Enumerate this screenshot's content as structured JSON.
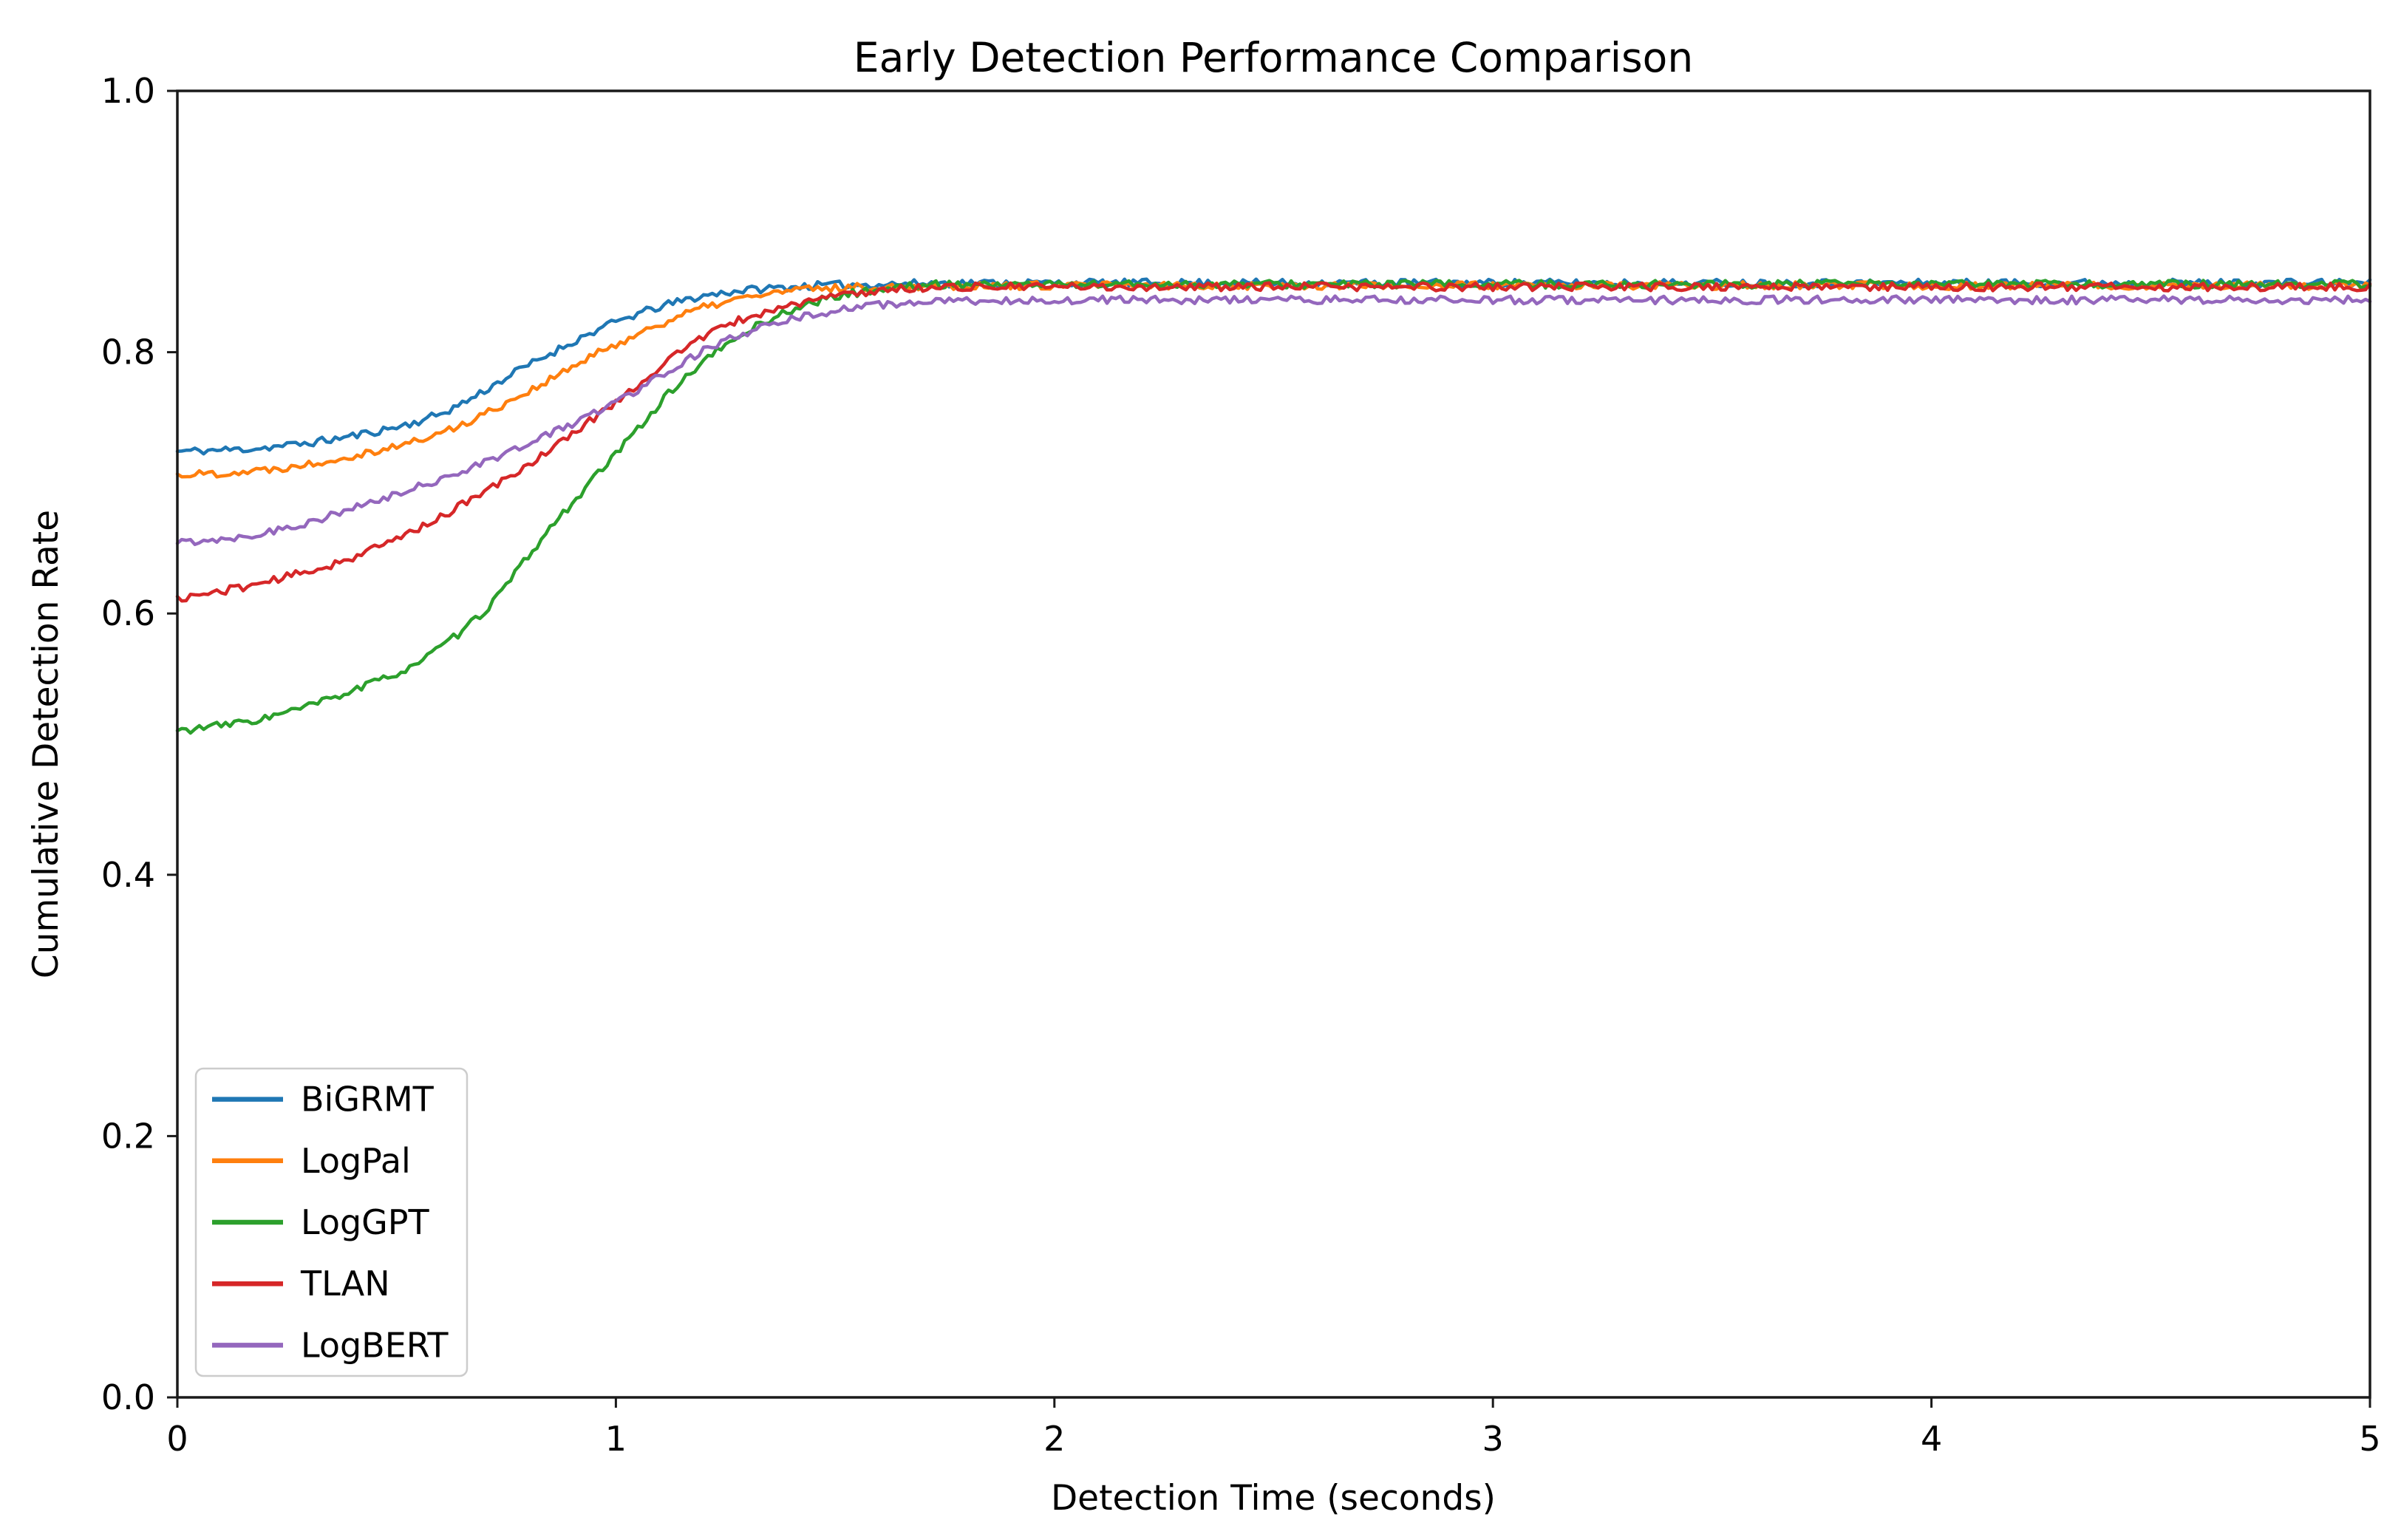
{
  "chart_data": {
    "type": "line",
    "title": "Early Detection Performance Comparison",
    "xlabel": "Detection Time (seconds)",
    "ylabel": "Cumulative Detection Rate",
    "xlim": [
      0,
      5
    ],
    "ylim": [
      0.0,
      1.0
    ],
    "xticks": [
      0,
      1,
      2,
      3,
      4,
      5
    ],
    "xtick_labels": [
      "0",
      "1",
      "2",
      "3",
      "4",
      "5"
    ],
    "yticks": [
      0.0,
      0.2,
      0.4,
      0.6,
      0.8,
      1.0
    ],
    "ytick_labels": [
      "0.0",
      "0.2",
      "0.4",
      "0.6",
      "0.8",
      "1.0"
    ],
    "grid": false,
    "legend_position": "lower left",
    "noise_amplitude": 0.003,
    "points_per_series": 501,
    "series": [
      {
        "name": "BiGRMT",
        "color": "#1f77b4",
        "seed": 11,
        "start_value": 0.724,
        "plateau_value": 0.853,
        "anchors": [
          [
            0,
            0.724
          ],
          [
            0.2,
            0.727
          ],
          [
            0.4,
            0.736
          ],
          [
            0.6,
            0.753
          ],
          [
            0.8,
            0.79
          ],
          [
            1.0,
            0.823
          ],
          [
            1.2,
            0.843
          ],
          [
            1.4,
            0.85
          ],
          [
            1.6,
            0.852
          ],
          [
            1.8,
            0.853
          ],
          [
            2.0,
            0.853
          ],
          [
            2.5,
            0.853
          ],
          [
            3.0,
            0.853
          ],
          [
            3.5,
            0.853
          ],
          [
            4.0,
            0.853
          ],
          [
            4.5,
            0.853
          ],
          [
            5.0,
            0.853
          ]
        ]
      },
      {
        "name": "LogPal",
        "color": "#ff7f0e",
        "seed": 22,
        "start_value": 0.706,
        "plateau_value": 0.851,
        "anchors": [
          [
            0,
            0.706
          ],
          [
            0.2,
            0.71
          ],
          [
            0.4,
            0.721
          ],
          [
            0.6,
            0.738
          ],
          [
            0.8,
            0.77
          ],
          [
            1.0,
            0.806
          ],
          [
            1.2,
            0.834
          ],
          [
            1.4,
            0.847
          ],
          [
            1.6,
            0.85
          ],
          [
            1.8,
            0.851
          ],
          [
            2.0,
            0.851
          ],
          [
            2.5,
            0.851
          ],
          [
            3.0,
            0.851
          ],
          [
            3.5,
            0.851
          ],
          [
            4.0,
            0.851
          ],
          [
            4.5,
            0.851
          ],
          [
            5.0,
            0.851
          ]
        ]
      },
      {
        "name": "LogGPT",
        "color": "#2ca02c",
        "seed": 33,
        "start_value": 0.51,
        "plateau_value": 0.852,
        "anchors": [
          [
            0,
            0.51
          ],
          [
            0.2,
            0.52
          ],
          [
            0.4,
            0.541
          ],
          [
            0.55,
            0.563
          ],
          [
            0.7,
            0.602
          ],
          [
            0.85,
            0.665
          ],
          [
            1.0,
            0.722
          ],
          [
            1.15,
            0.778
          ],
          [
            1.3,
            0.816
          ],
          [
            1.45,
            0.838
          ],
          [
            1.6,
            0.848
          ],
          [
            1.8,
            0.852
          ],
          [
            2.0,
            0.852
          ],
          [
            2.5,
            0.852
          ],
          [
            3.0,
            0.852
          ],
          [
            3.5,
            0.852
          ],
          [
            4.0,
            0.852
          ],
          [
            4.5,
            0.852
          ],
          [
            5.0,
            0.852
          ]
        ]
      },
      {
        "name": "TLAN",
        "color": "#d62728",
        "seed": 44,
        "start_value": 0.611,
        "plateau_value": 0.85,
        "anchors": [
          [
            0,
            0.611
          ],
          [
            0.2,
            0.624
          ],
          [
            0.4,
            0.643
          ],
          [
            0.6,
            0.674
          ],
          [
            0.8,
            0.714
          ],
          [
            1.0,
            0.762
          ],
          [
            1.2,
            0.812
          ],
          [
            1.4,
            0.836
          ],
          [
            1.6,
            0.847
          ],
          [
            1.8,
            0.85
          ],
          [
            2.0,
            0.85
          ],
          [
            2.5,
            0.85
          ],
          [
            3.0,
            0.85
          ],
          [
            3.5,
            0.85
          ],
          [
            4.0,
            0.85
          ],
          [
            4.5,
            0.85
          ],
          [
            5.0,
            0.85
          ]
        ]
      },
      {
        "name": "LogBERT",
        "color": "#9467bd",
        "seed": 55,
        "start_value": 0.654,
        "plateau_value": 0.84,
        "anchors": [
          [
            0,
            0.654
          ],
          [
            0.2,
            0.662
          ],
          [
            0.4,
            0.68
          ],
          [
            0.6,
            0.703
          ],
          [
            0.8,
            0.73
          ],
          [
            1.0,
            0.762
          ],
          [
            1.2,
            0.801
          ],
          [
            1.4,
            0.825
          ],
          [
            1.6,
            0.836
          ],
          [
            1.8,
            0.839
          ],
          [
            2.0,
            0.84
          ],
          [
            2.5,
            0.84
          ],
          [
            3.0,
            0.84
          ],
          [
            3.5,
            0.84
          ],
          [
            4.0,
            0.84
          ],
          [
            4.5,
            0.84
          ],
          [
            5.0,
            0.84
          ]
        ]
      }
    ],
    "style": {
      "line_color_blue": "#1f77b4",
      "line_color_orange": "#ff7f0e",
      "line_color_green": "#2ca02c",
      "line_color_red": "#d62728",
      "line_color_purple": "#9467bd",
      "spine_color": "#1a1a1a",
      "background_color": "#ffffff",
      "legend_border_color": "#cccccc"
    }
  }
}
